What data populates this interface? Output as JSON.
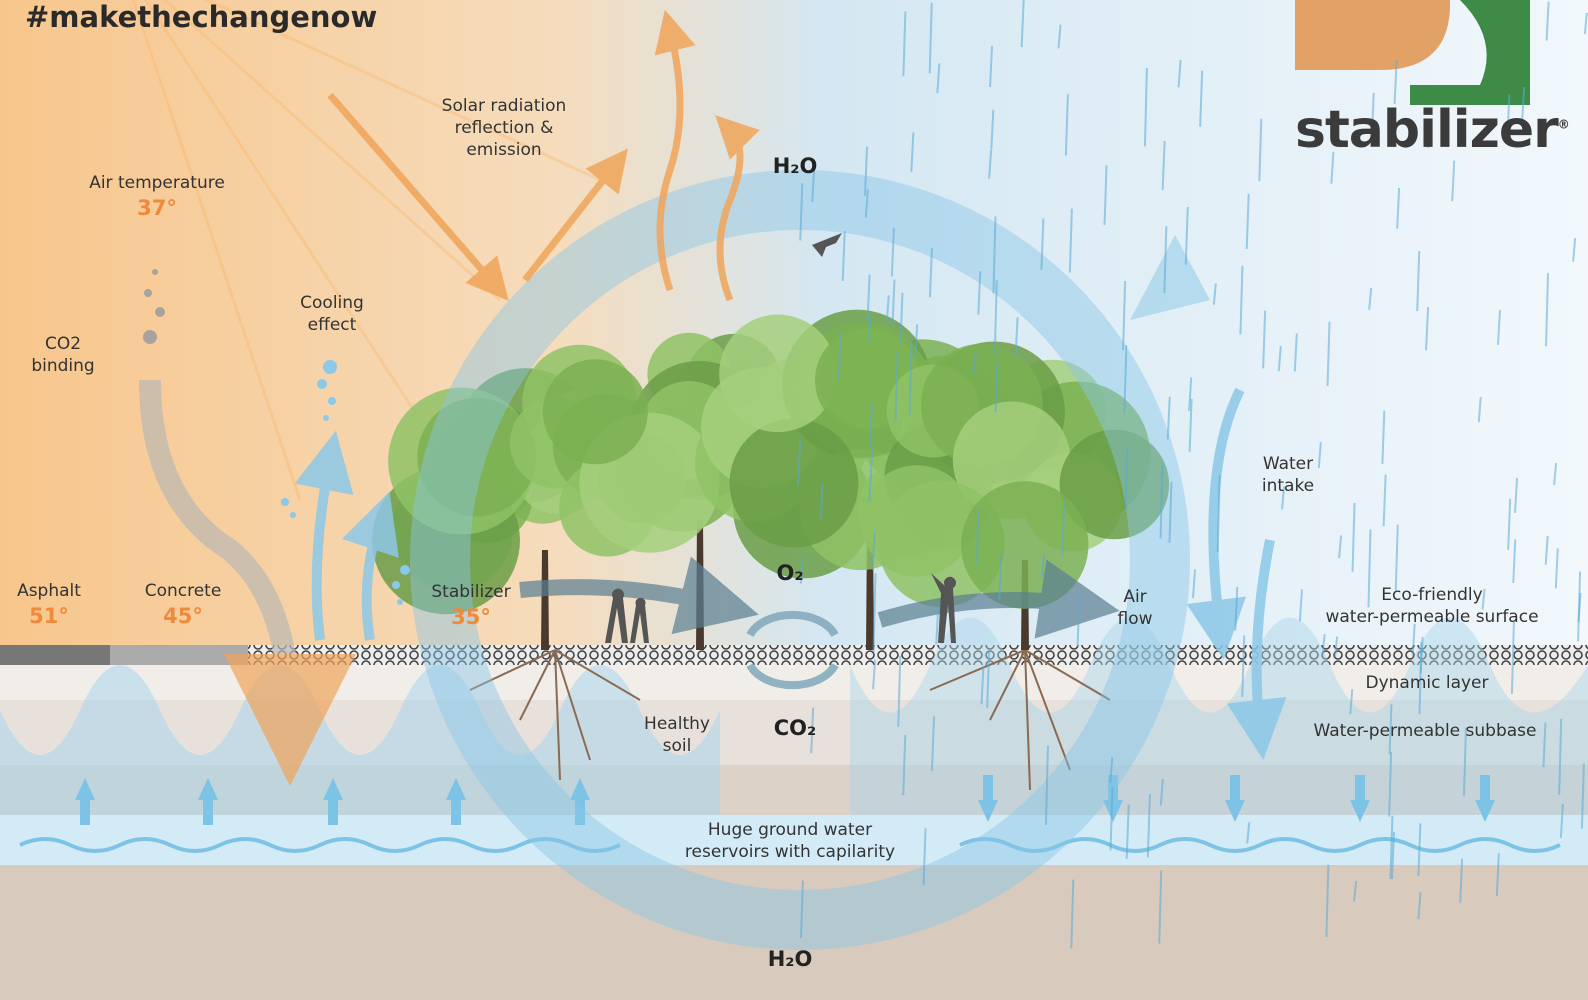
{
  "header": {
    "hashtag": "#makethechangenow"
  },
  "logo": {
    "text": "stabilizer",
    "mark": "®"
  },
  "labels": {
    "solar_radiation": [
      "Solar radiation",
      "reflection &",
      "emission"
    ],
    "h2o_top": "H₂O",
    "air_temperature": {
      "label": "Air temperature",
      "value": "37°"
    },
    "co2_binding": [
      "CO2",
      "binding"
    ],
    "cooling_effect": [
      "Cooling",
      "effect"
    ],
    "water_intake": [
      "Water",
      "intake"
    ],
    "asphalt": {
      "label": "Asphalt",
      "value": "51°"
    },
    "concrete": {
      "label": "Concrete",
      "value": "45°"
    },
    "stabilizer": {
      "label": "Stabilizer",
      "value": "35°"
    },
    "o2": "O₂",
    "air_flow": [
      "Air",
      "flow"
    ],
    "eco_friendly": [
      "Eco-friendly",
      "water-permeable surface"
    ],
    "dynamic_layer": "Dynamic layer",
    "subbase": "Water-permeable subbase",
    "healthy_soil": [
      "Healthy",
      "soil"
    ],
    "co2": "CO₂",
    "ground_water": [
      "Huge ground water",
      "reservoirs with capilarity"
    ],
    "h2o_bottom": "H₂O"
  }
}
